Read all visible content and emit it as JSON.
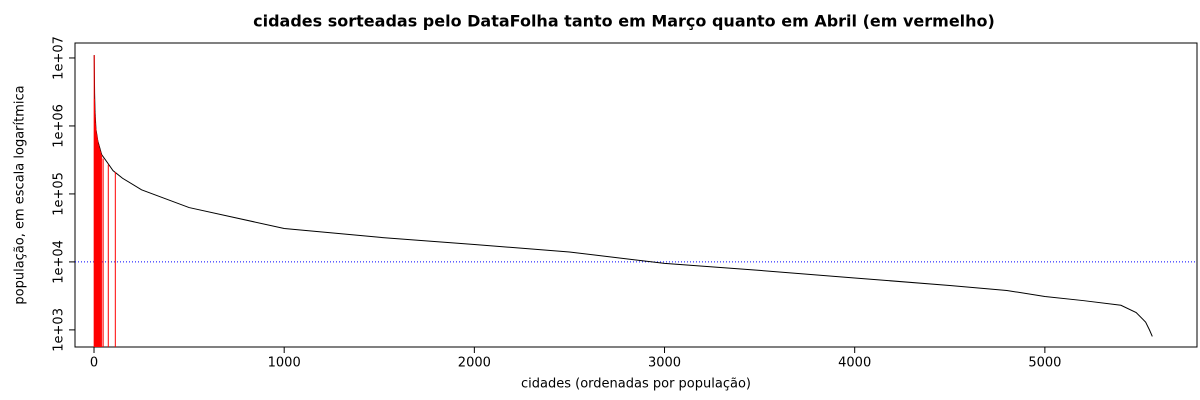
{
  "chart_data": {
    "type": "line",
    "title": "cidades sorteadas pelo DataFolha tanto em Março quanto em Abril (em vermelho)",
    "x_label": "cidades (ordenadas por população)",
    "y_label": "população, em escala logarítmica",
    "xlim": [
      -100,
      5800
    ],
    "xticks": [
      0,
      1000,
      2000,
      3000,
      4000,
      5000
    ],
    "ylim": [
      560,
      16600000
    ],
    "y_scale": "log",
    "yticks": [
      {
        "value": 1000,
        "label": "1e+03"
      },
      {
        "value": 10000,
        "label": "1e+04"
      },
      {
        "value": 100000,
        "label": "1e+05"
      },
      {
        "value": 1000000,
        "label": "1e+06"
      },
      {
        "value": 10000000,
        "label": "1e+07"
      }
    ],
    "reference_line": {
      "value": 10000,
      "color": "#0000ff"
    },
    "series": [
      {
        "style": "line",
        "color": "#000000",
        "x": [
          1,
          2,
          3,
          5,
          10,
          20,
          40,
          70,
          100,
          150,
          250,
          500,
          1000,
          1500,
          2000,
          2500,
          3000,
          3500,
          4000,
          4500,
          4800,
          5000,
          5200,
          5400,
          5480,
          5530,
          5550,
          5565
        ],
        "values": [
          11000000,
          6000000,
          3000000,
          1700000,
          900000,
          600000,
          380000,
          290000,
          220000,
          170000,
          115000,
          63000,
          31000,
          23000,
          18000,
          14000,
          9500,
          7500,
          5800,
          4500,
          3800,
          3100,
          2700,
          2300,
          1800,
          1300,
          1000,
          800
        ]
      },
      {
        "style": "vlines",
        "color": "#ff0000",
        "x": [
          1,
          2,
          3,
          4,
          5,
          6,
          7,
          8,
          9,
          10,
          12,
          14,
          16,
          18,
          20,
          22,
          25,
          28,
          31,
          35,
          40,
          48,
          75,
          112
        ],
        "values": [
          11000000,
          2500000,
          2000000,
          1600000,
          1400000,
          1300000,
          1100000,
          1000000,
          950000,
          900000,
          800000,
          750000,
          700000,
          650000,
          600000,
          550000,
          520000,
          480000,
          450000,
          420000,
          380000,
          330000,
          270000,
          210000
        ]
      }
    ]
  }
}
